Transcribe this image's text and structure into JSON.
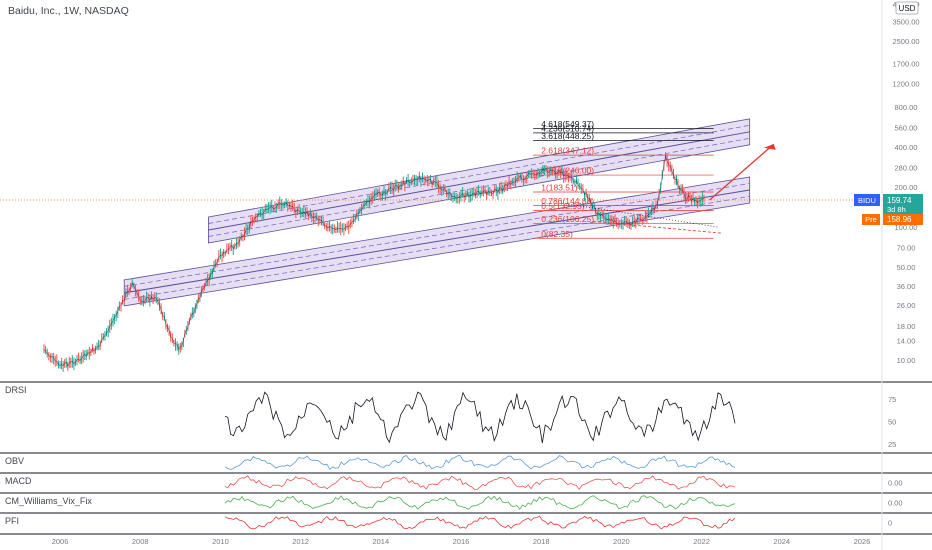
{
  "header": {
    "title": "Baidu, Inc., 1W, NASDAQ",
    "currency": "USD"
  },
  "main_pane": {
    "price_axis_labels": [
      "4750.00",
      "3500.00",
      "2500.00",
      "1700.00",
      "1200.00",
      "800.00",
      "560.00",
      "400.00",
      "280.00",
      "200.00",
      "140.00",
      "100.00",
      "70.00",
      "50.00",
      "36.00",
      "26.00",
      "18.00",
      "14.00",
      "10.00"
    ],
    "tags": {
      "ticker": "BIDU",
      "last_price": "159.74",
      "countdown": "3d 8h",
      "pre_label": "Pre",
      "pre_price": "158.96"
    },
    "fib_labels": [
      "4.618(549.37)",
      "4.236(510.74)",
      "3.618(448.25)",
      "2.618(347.12)",
      "1.618(246.00)",
      "1(183.51)",
      "0.786(144.88)",
      "0.5(132.95)",
      "0.236(106.25)",
      "0(82.35)"
    ],
    "colors": {
      "candle_up": "#26a69a",
      "candle_down": "#ef5350",
      "channel_fill": "#d1c4e9",
      "channel_line": "#5c4b9e",
      "fib_text": "#e53935",
      "projection_arrow": "#e53935",
      "tag_blue": "#2962ff",
      "tag_orange": "#ff6d00"
    }
  },
  "indicators": [
    {
      "name": "DRSI",
      "axis_labels": [
        "75",
        "50",
        "25"
      ]
    },
    {
      "name": "OBV",
      "axis_labels": []
    },
    {
      "name": "MACD",
      "axis_labels": [
        "0.00"
      ]
    },
    {
      "name": "CM_Williams_Vix_Fix",
      "axis_labels": [
        "0.00"
      ]
    },
    {
      "name": "PFI",
      "axis_labels": [
        "0"
      ]
    }
  ],
  "time_axis_labels": [
    "2006",
    "2008",
    "2010",
    "2012",
    "2014",
    "2016",
    "2018",
    "2020",
    "2022",
    "2024",
    "2026"
  ],
  "chart_data": {
    "type": "line",
    "title": "Baidu, Inc., 1W, NASDAQ",
    "x": [
      2005.6,
      2006.0,
      2006.5,
      2007.0,
      2007.4,
      2007.8,
      2008.0,
      2008.4,
      2008.8,
      2009.0,
      2009.3,
      2009.6,
      2010.0,
      2010.4,
      2010.8,
      2011.2,
      2011.6,
      2012.0,
      2012.4,
      2012.8,
      2013.2,
      2013.6,
      2014.0,
      2014.4,
      2014.8,
      2015.0,
      2015.4,
      2015.8,
      2016.2,
      2016.6,
      2017.0,
      2017.4,
      2017.8,
      2018.2,
      2018.6,
      2019.0,
      2019.4,
      2019.8,
      2020.2,
      2020.6,
      2020.9,
      2021.1,
      2021.3,
      2021.6,
      2021.9,
      2022.1
    ],
    "series": [
      {
        "values": [
          12,
          9,
          10,
          13,
          22,
          38,
          28,
          30,
          14,
          12,
          22,
          36,
          60,
          75,
          110,
          140,
          150,
          130,
          120,
          95,
          100,
          150,
          180,
          200,
          230,
          235,
          210,
          170,
          175,
          180,
          190,
          230,
          250,
          270,
          250,
          200,
          130,
          110,
          105,
          120,
          145,
          340,
          240,
          170,
          155,
          159.74
        ]
      }
    ],
    "ylog": true,
    "ylim": [
      8,
      4750
    ],
    "xlim": [
      2005.0,
      2026.4
    ],
    "fib_levels": [
      549.37,
      510.74,
      448.25,
      347.12,
      246.0,
      183.51,
      144.88,
      132.95,
      106.25,
      82.35
    ],
    "last_price": 159.74,
    "pre_price": 158.96
  }
}
